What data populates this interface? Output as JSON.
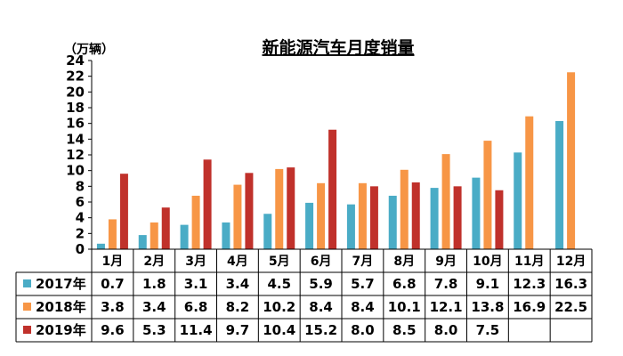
{
  "chart_data": {
    "type": "bar",
    "title": "新能源汽车月度销量",
    "y_unit": "（万辆）",
    "ylim": [
      0,
      24
    ],
    "yticks": [
      "0",
      "2",
      "4",
      "6",
      "8",
      "10",
      "12",
      "14",
      "16",
      "18",
      "20",
      "22",
      "24"
    ],
    "categories": [
      "1月",
      "2月",
      "3月",
      "4月",
      "5月",
      "6月",
      "7月",
      "8月",
      "9月",
      "10月",
      "11月",
      "12月"
    ],
    "series": [
      {
        "name": "2017年",
        "color": "#4AACC6",
        "values": [
          0.7,
          1.8,
          3.1,
          3.4,
          4.5,
          5.9,
          5.7,
          6.8,
          7.8,
          9.1,
          12.3,
          16.3
        ],
        "labels": [
          "0.7",
          "1.8",
          "3.1",
          "3.4",
          "4.5",
          "5.9",
          "5.7",
          "6.8",
          "7.8",
          "9.1",
          "12.3",
          "16.3"
        ]
      },
      {
        "name": "2018年",
        "color": "#F79646",
        "values": [
          3.8,
          3.4,
          6.8,
          8.2,
          10.2,
          8.4,
          8.4,
          10.1,
          12.1,
          13.8,
          16.9,
          22.5
        ],
        "labels": [
          "3.8",
          "3.4",
          "6.8",
          "8.2",
          "10.2",
          "8.4",
          "8.4",
          "10.1",
          "12.1",
          "13.8",
          "16.9",
          "22.5"
        ]
      },
      {
        "name": "2019年",
        "color": "#C0312B",
        "values": [
          9.6,
          5.3,
          11.4,
          9.7,
          10.4,
          15.2,
          8.0,
          8.5,
          8.0,
          7.5,
          null,
          null
        ],
        "labels": [
          "9.6",
          "5.3",
          "11.4",
          "9.7",
          "10.4",
          "15.2",
          "8.0",
          "8.5",
          "8.0",
          "7.5",
          "",
          ""
        ]
      }
    ],
    "legend": "data-table",
    "grid": false
  }
}
